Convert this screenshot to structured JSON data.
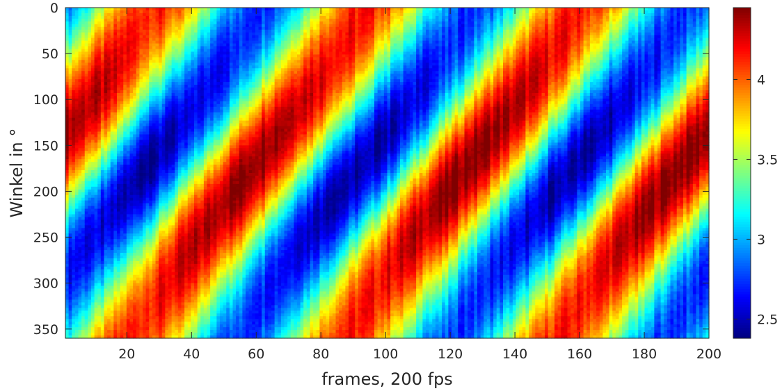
{
  "chart_data": {
    "type": "heatmap",
    "title": "",
    "xlabel": "frames, 200 fps",
    "ylabel": "Winkel in °",
    "x_range": [
      1,
      200
    ],
    "y_range": [
      0,
      360
    ],
    "y_reversed": true,
    "x_ticks": [
      {
        "value": 20,
        "label": "20"
      },
      {
        "value": 40,
        "label": "40"
      },
      {
        "value": 60,
        "label": "60"
      },
      {
        "value": 80,
        "label": "80"
      },
      {
        "value": 100,
        "label": "100"
      },
      {
        "value": 120,
        "label": "120"
      },
      {
        "value": 140,
        "label": "140"
      },
      {
        "value": 160,
        "label": "160"
      },
      {
        "value": 180,
        "label": "180"
      },
      {
        "value": 200,
        "label": "200"
      }
    ],
    "y_ticks": [
      {
        "value": 0,
        "label": "0"
      },
      {
        "value": 50,
        "label": "50"
      },
      {
        "value": 100,
        "label": "100"
      },
      {
        "value": 150,
        "label": "150"
      },
      {
        "value": 200,
        "label": "200"
      },
      {
        "value": 250,
        "label": "250"
      },
      {
        "value": 300,
        "label": "300"
      },
      {
        "value": 350,
        "label": "350"
      }
    ],
    "colorbar": {
      "colormap": "jet",
      "range": [
        2.38,
        4.45
      ],
      "ticks": [
        {
          "value": 2.5,
          "label": "2.5"
        },
        {
          "value": 3,
          "label": "3"
        },
        {
          "value": 3.5,
          "label": "3.5"
        },
        {
          "value": 4,
          "label": "4"
        }
      ]
    },
    "pattern": {
      "description_of_values": "diagonal bands; approximate value = 3.4 + 1.0*cos(2*pi*(frame - phase)/period) where phase shifts with angle",
      "period_frames": 66,
      "band_slope_frames_per_degree": 0.2,
      "min_value_centers": [
        {
          "x": 25,
          "y": 175
        },
        {
          "x": 90,
          "y": 175
        },
        {
          "x": 157,
          "y": 175
        }
      ],
      "max_value_centers": [
        {
          "x": 60,
          "y": 175
        },
        {
          "x": 123,
          "y": 175
        },
        {
          "x": 188,
          "y": 175
        }
      ]
    },
    "grid": false,
    "legend": "none"
  }
}
